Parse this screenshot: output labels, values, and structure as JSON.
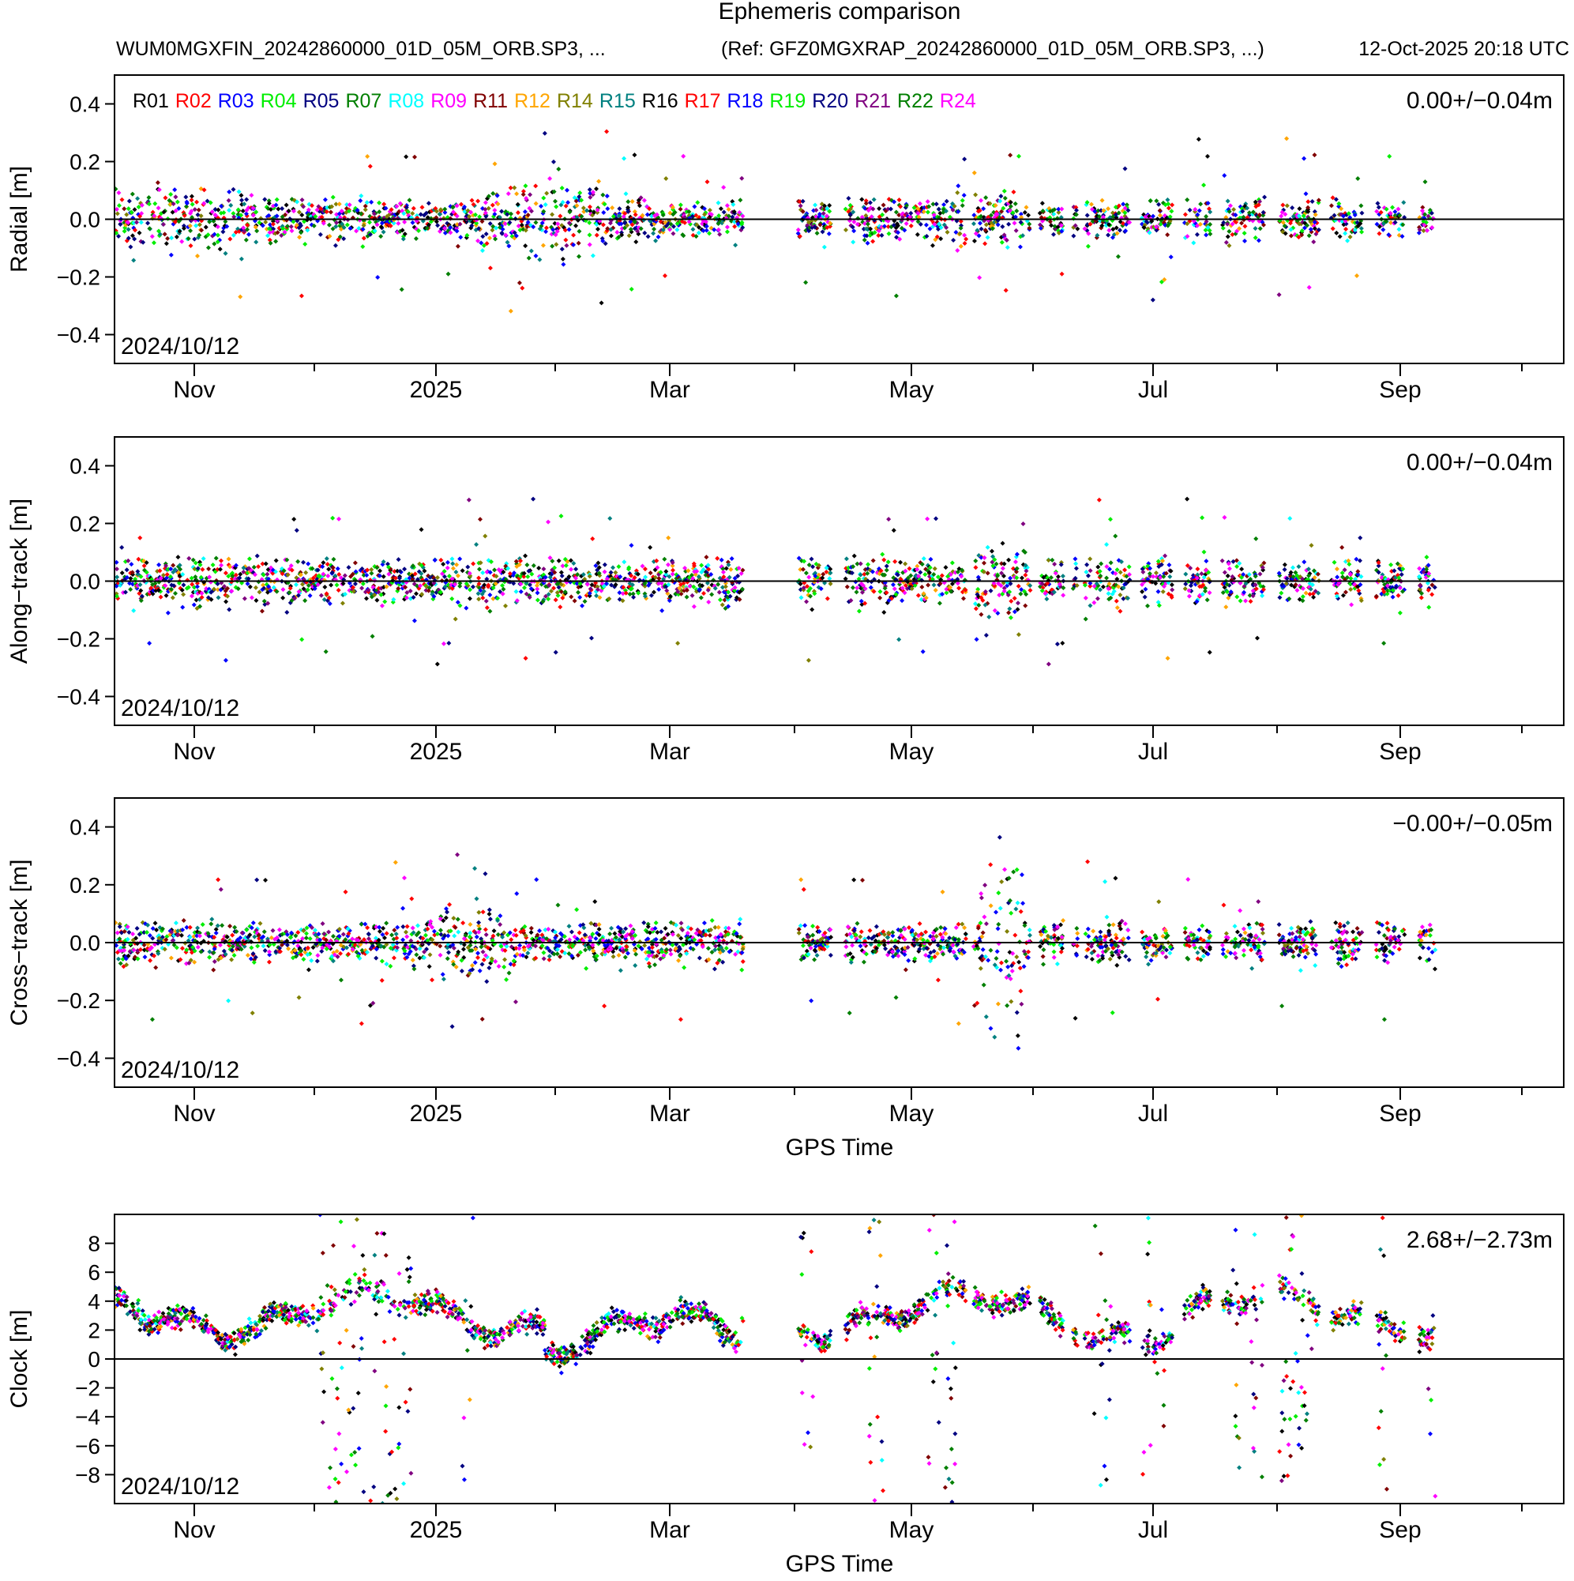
{
  "figure": {
    "title": "Ephemeris comparison",
    "file_label": "WUM0MGXFIN_20242860000_01D_05M_ORB.SP3, ...",
    "ref_label": "(Ref: GFZ0MGXRAP_20242860000_01D_05M_ORB.SP3, ...)",
    "timestamp": "12-Oct-2025 20:18 UTC"
  },
  "legend": [
    {
      "name": "R01",
      "color": "#000000"
    },
    {
      "name": "R02",
      "color": "#ff0000"
    },
    {
      "name": "R03",
      "color": "#0000ff"
    },
    {
      "name": "R04",
      "color": "#00ee00"
    },
    {
      "name": "R05",
      "color": "#000080"
    },
    {
      "name": "R07",
      "color": "#007f00"
    },
    {
      "name": "R08",
      "color": "#00ffff"
    },
    {
      "name": "R09",
      "color": "#ff00ff"
    },
    {
      "name": "R11",
      "color": "#800000"
    },
    {
      "name": "R12",
      "color": "#ffa500"
    },
    {
      "name": "R14",
      "color": "#808000"
    },
    {
      "name": "R15",
      "color": "#008080"
    },
    {
      "name": "R16",
      "color": "#000000"
    },
    {
      "name": "R17",
      "color": "#ff0000"
    },
    {
      "name": "R18",
      "color": "#0000ff"
    },
    {
      "name": "R19",
      "color": "#00ee00"
    },
    {
      "name": "R20",
      "color": "#000080"
    },
    {
      "name": "R21",
      "color": "#800080"
    },
    {
      "name": "R22",
      "color": "#007f00"
    },
    {
      "name": "R24",
      "color": "#ff00ff"
    }
  ],
  "chart_data": [
    {
      "type": "scatter",
      "panel": "radial",
      "ylabel": "Radial [m]",
      "xlabel": "",
      "ylim": [
        -0.5,
        0.5
      ],
      "yticks": [
        -0.4,
        -0.2,
        0.0,
        0.2,
        0.4
      ],
      "ytick_labels": [
        "−0.4",
        "−0.2",
        "0.0",
        "0.2",
        "0.4"
      ],
      "stats": "0.00+/−0.04m",
      "date_label": "2024/10/12",
      "xticks": [
        "Nov",
        "2025",
        "Mar",
        "May",
        "Jul",
        "Sep"
      ],
      "profile": "radial"
    },
    {
      "type": "scatter",
      "panel": "along-track",
      "ylabel": "Along−track [m]",
      "xlabel": "",
      "ylim": [
        -0.5,
        0.5
      ],
      "yticks": [
        -0.4,
        -0.2,
        0.0,
        0.2,
        0.4
      ],
      "ytick_labels": [
        "−0.4",
        "−0.2",
        "0.0",
        "0.2",
        "0.4"
      ],
      "stats": "0.00+/−0.04m",
      "date_label": "2024/10/12",
      "xticks": [
        "Nov",
        "2025",
        "Mar",
        "May",
        "Jul",
        "Sep"
      ],
      "profile": "along"
    },
    {
      "type": "scatter",
      "panel": "cross-track",
      "ylabel": "Cross−track [m]",
      "xlabel": "GPS Time",
      "ylim": [
        -0.5,
        0.5
      ],
      "yticks": [
        -0.4,
        -0.2,
        0.0,
        0.2,
        0.4
      ],
      "ytick_labels": [
        "−0.4",
        "−0.2",
        "0.0",
        "0.2",
        "0.4"
      ],
      "stats": "−0.00+/−0.05m",
      "date_label": "2024/10/12",
      "xticks": [
        "Nov",
        "2025",
        "Mar",
        "May",
        "Jul",
        "Sep"
      ],
      "profile": "cross"
    },
    {
      "type": "scatter",
      "panel": "clock",
      "ylabel": "Clock [m]",
      "xlabel": "GPS Time",
      "ylim": [
        -10,
        10
      ],
      "yticks": [
        -8,
        -6,
        -4,
        -2,
        0,
        2,
        4,
        6,
        8
      ],
      "ytick_labels": [
        "−8",
        "−6",
        "−4",
        "−2",
        "0",
        "2",
        "4",
        "6",
        "8"
      ],
      "stats": "2.68+/−2.73m",
      "date_label": "2024/10/12",
      "xticks": [
        "Nov",
        "2025",
        "Mar",
        "May",
        "Jul",
        "Sep"
      ],
      "profile": "clock"
    }
  ]
}
